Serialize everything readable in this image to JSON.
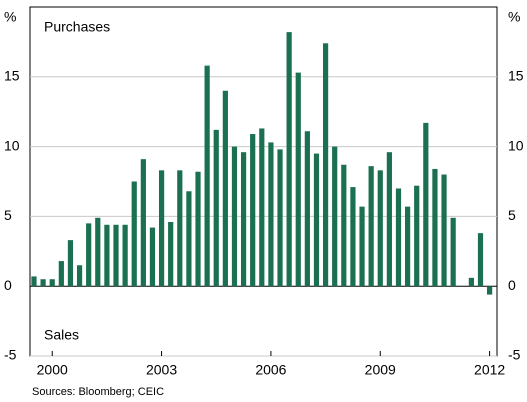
{
  "chart_data": {
    "type": "bar",
    "y_label": "%",
    "annotations": [
      "Purchases",
      "Sales"
    ],
    "source": "Sources: Bloomberg; CEIC",
    "categories": [
      null,
      null,
      "2000",
      null,
      null,
      null,
      null,
      null,
      null,
      null,
      null,
      null,
      null,
      null,
      "2003",
      null,
      null,
      null,
      null,
      null,
      null,
      null,
      null,
      null,
      null,
      null,
      "2006",
      null,
      null,
      null,
      null,
      null,
      null,
      null,
      null,
      null,
      null,
      null,
      "2009",
      null,
      null,
      null,
      null,
      null,
      null,
      null,
      null,
      null,
      null,
      null,
      "2012"
    ],
    "values": [
      0.7,
      0.5,
      0.5,
      1.8,
      3.3,
      1.5,
      4.5,
      4.9,
      4.4,
      4.4,
      4.4,
      7.5,
      9.1,
      4.2,
      8.3,
      4.6,
      8.3,
      6.8,
      8.2,
      15.8,
      11.2,
      14.0,
      10.0,
      9.6,
      10.9,
      11.3,
      10.3,
      9.8,
      18.2,
      15.3,
      11.1,
      9.5,
      17.4,
      10.0,
      8.7,
      7.1,
      5.7,
      8.6,
      8.3,
      9.6,
      7.0,
      5.7,
      7.2,
      11.7,
      8.4,
      8.0,
      4.9,
      0.0,
      0.6,
      3.8,
      -0.6
    ],
    "color": "#1a7050",
    "ylim": [
      -5,
      20
    ],
    "yticks": [
      -5,
      0,
      5,
      10,
      15
    ],
    "grid": true
  }
}
